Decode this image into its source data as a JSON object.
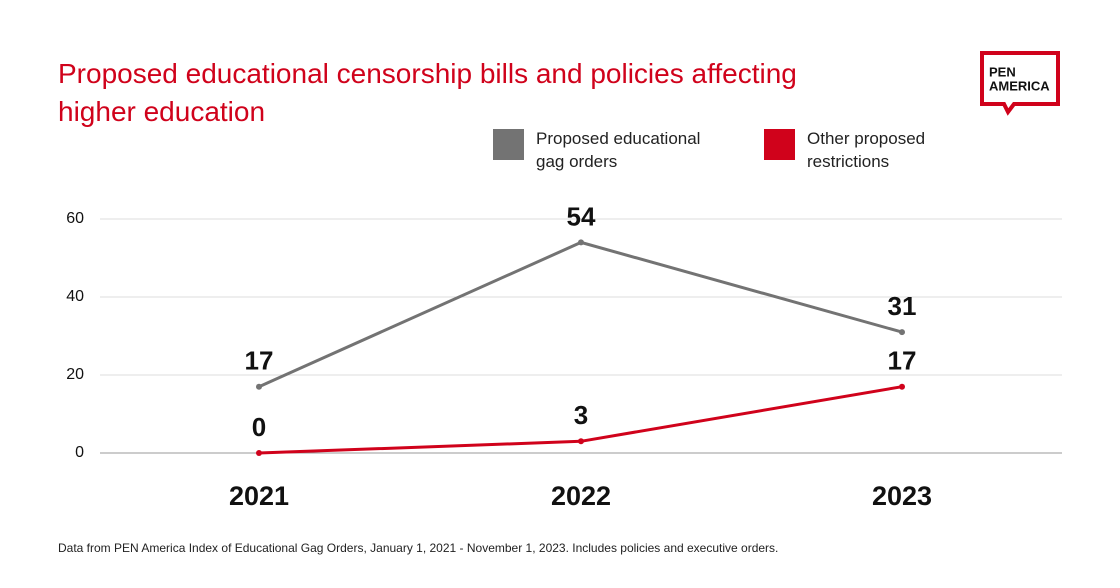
{
  "chart_data": {
    "type": "line",
    "title": "Proposed educational censorship bills and policies affecting higher education",
    "categories": [
      "2021",
      "2022",
      "2023"
    ],
    "series": [
      {
        "name": "Proposed educational gag orders",
        "color": "#737373",
        "values": [
          17,
          54,
          31
        ]
      },
      {
        "name": "Other proposed restrictions",
        "color": "#d0021b",
        "values": [
          0,
          3,
          17
        ]
      }
    ],
    "ylim": [
      0,
      60
    ],
    "yticks": [
      0,
      20,
      40,
      60
    ],
    "grid": true,
    "legend": "top",
    "footnote": "Data from PEN America Index of Educational Gag Orders, January 1, 2021 - November 1, 2023. Includes policies and executive orders."
  },
  "logo": {
    "line1": "PEN",
    "line2": "AMERICA"
  }
}
